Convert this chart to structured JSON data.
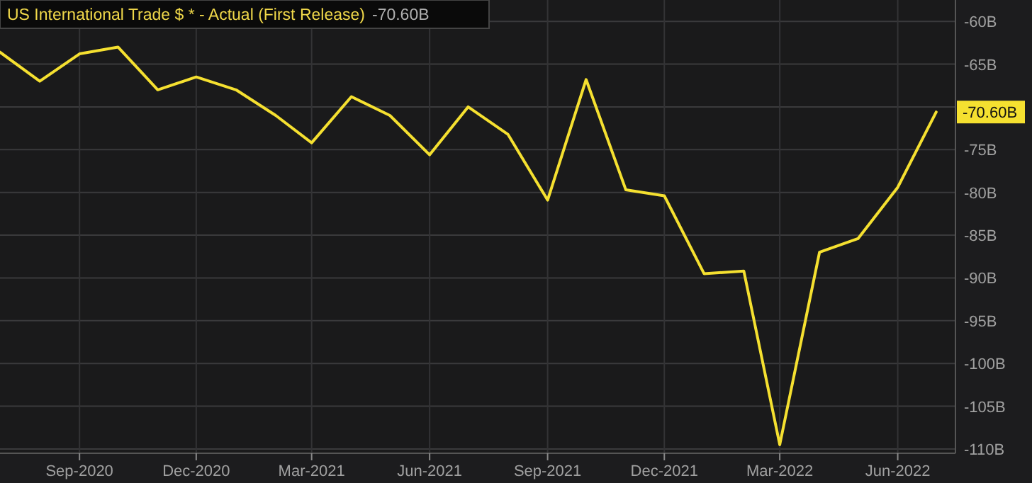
{
  "chart_data": {
    "type": "line",
    "title": "US International Trade $ * - Actual (First Release)",
    "x": [
      "2020-07-01",
      "2020-08-01",
      "2020-09-01",
      "2020-10-01",
      "2020-11-01",
      "2020-12-01",
      "2021-01-01",
      "2021-02-01",
      "2021-03-01",
      "2021-04-01",
      "2021-05-01",
      "2021-06-01",
      "2021-07-01",
      "2021-08-01",
      "2021-09-01",
      "2021-10-01",
      "2021-11-01",
      "2021-12-01",
      "2022-01-01",
      "2022-02-01",
      "2022-03-01",
      "2022-04-01",
      "2022-05-01",
      "2022-06-01",
      "2022-07-01"
    ],
    "series": [
      {
        "color": "#f5e030",
        "values": [
          -63.6,
          -67.0,
          -63.8,
          -63.0,
          -68.0,
          -66.5,
          -68.0,
          -71.0,
          -74.2,
          -68.8,
          -71.0,
          -75.6,
          -70.0,
          -73.2,
          -80.9,
          -66.8,
          -79.7,
          -80.4,
          -89.5,
          -89.2,
          -109.5,
          -87.0,
          -85.4,
          -79.4,
          -70.6
        ]
      }
    ],
    "xlim": [
      "2020-07-01",
      "2022-07-16"
    ],
    "xticks": [
      {
        "value": "2020-09-01",
        "label": "Sep-2020"
      },
      {
        "value": "2020-12-01",
        "label": "Dec-2020"
      },
      {
        "value": "2021-03-01",
        "label": "Mar-2021"
      },
      {
        "value": "2021-06-01",
        "label": "Jun-2021"
      },
      {
        "value": "2021-09-01",
        "label": "Sep-2021"
      },
      {
        "value": "2021-12-01",
        "label": "Dec-2021"
      },
      {
        "value": "2022-03-01",
        "label": "Mar-2022"
      },
      {
        "value": "2022-06-01",
        "label": "Jun-2022"
      }
    ],
    "ylim": [
      -110.5,
      -57.5
    ],
    "yticks": [
      {
        "value": -60,
        "label": "-60B"
      },
      {
        "value": -65,
        "label": "-65B"
      },
      {
        "value": -70,
        "label": null
      },
      {
        "value": -75,
        "label": "-75B"
      },
      {
        "value": -80,
        "label": "-80B"
      },
      {
        "value": -85,
        "label": "-85B"
      },
      {
        "value": -90,
        "label": "-90B"
      },
      {
        "value": -95,
        "label": "-95B"
      },
      {
        "value": -100,
        "label": "-100B"
      },
      {
        "value": -105,
        "label": "-105B"
      },
      {
        "value": -110,
        "label": "-110B"
      }
    ],
    "grid": true,
    "annotations": [
      "-70.60B",
      {
        "text": "-70.60B",
        "x": "2022-07-01",
        "y": -70.6
      }
    ]
  }
}
